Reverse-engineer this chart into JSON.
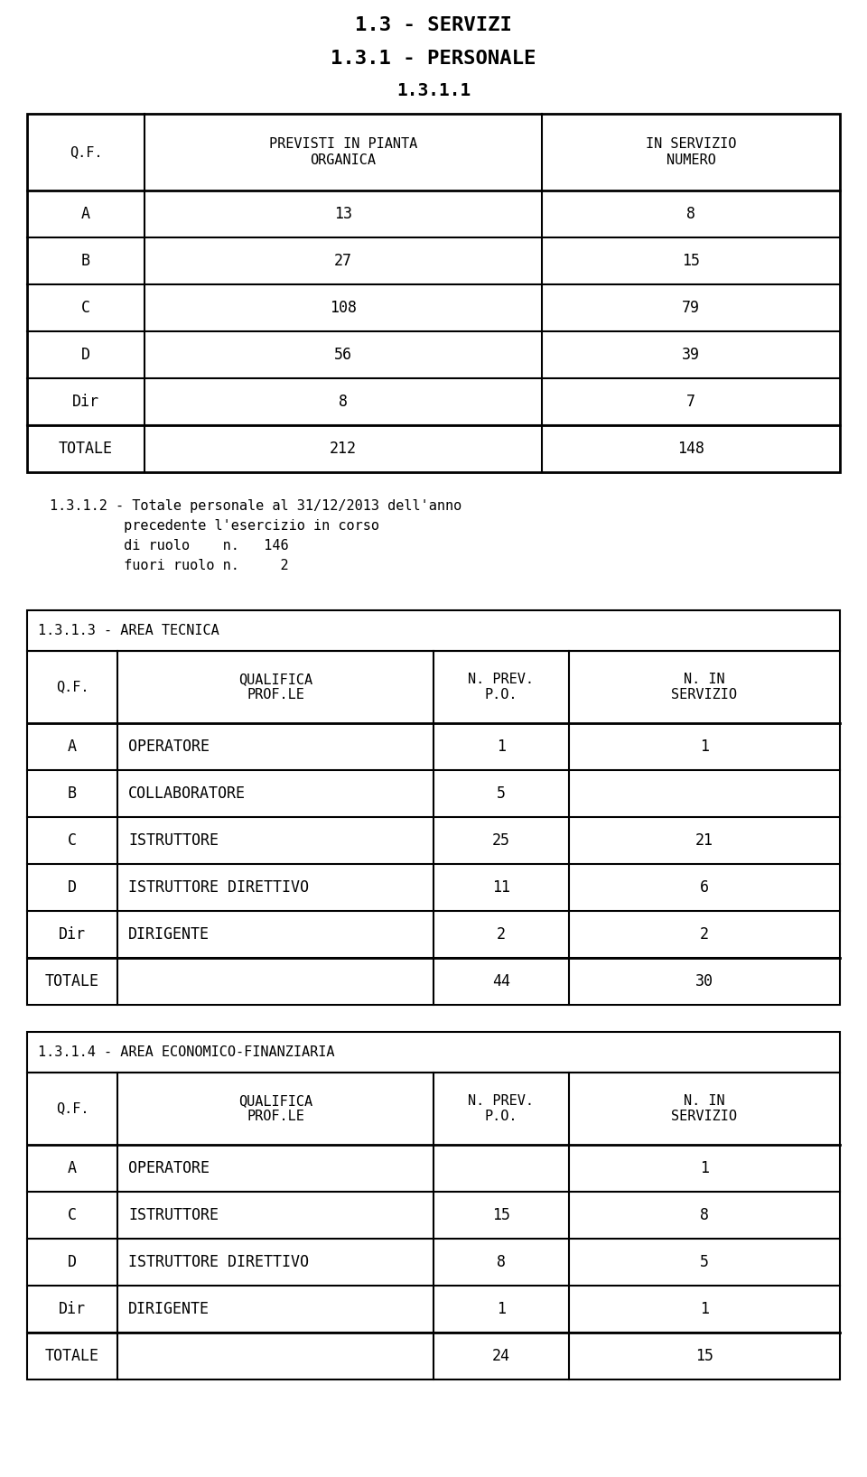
{
  "title1": "1.3 - SERVIZI",
  "title2": "1.3.1 - PERSONALE",
  "title3": "1.3.1.1",
  "table1_header": [
    "Q.F.",
    "PREVISTI IN PIANTA\nORGANICA",
    "IN SERVIZIO\nNUMERO"
  ],
  "table1_rows": [
    [
      "A",
      "13",
      "8"
    ],
    [
      "B",
      "27",
      "15"
    ],
    [
      "C",
      "108",
      "79"
    ],
    [
      "D",
      "56",
      "39"
    ],
    [
      "Dir",
      "8",
      "7"
    ]
  ],
  "table1_total": [
    "TOTALE",
    "212",
    "148"
  ],
  "text_line1": "1.3.1.2 - Totale personale al 31/12/2013 dell'anno",
  "text_line2": "         precedente l'esercizio in corso",
  "text_line3": "         di ruolo    n.   146",
  "text_line4": "         fuori ruolo n.     2",
  "section2_title": "1.3.1.3 - AREA TECNICA",
  "table2_header": [
    "Q.F.",
    "QUALIFICA\nPROF.LE",
    "N. PREV.\nP.O.",
    "N. IN\nSERVIZIO"
  ],
  "table2_rows": [
    [
      "A",
      "OPERATORE",
      "1",
      "1"
    ],
    [
      "B",
      "COLLABORATORE",
      "5",
      ""
    ],
    [
      "C",
      "ISTRUTTORE",
      "25",
      "21"
    ],
    [
      "D",
      "ISTRUTTORE DIRETTIVO",
      "11",
      "6"
    ],
    [
      "Dir",
      "DIRIGENTE",
      "2",
      "2"
    ]
  ],
  "table2_total": [
    "TOTALE",
    "",
    "44",
    "30"
  ],
  "section3_title": "1.3.1.4 - AREA ECONOMICO-FINANZIARIA",
  "table3_header": [
    "Q.F.",
    "QUALIFICA\nPROF.LE",
    "N. PREV.\nP.O.",
    "N. IN\nSERVIZIO"
  ],
  "table3_rows": [
    [
      "A",
      "OPERATORE",
      "",
      "1"
    ],
    [
      "C",
      "ISTRUTTORE",
      "15",
      "8"
    ],
    [
      "D",
      "ISTRUTTORE DIRETTIVO",
      "8",
      "5"
    ],
    [
      "Dir",
      "DIRIGENTE",
      "1",
      "1"
    ]
  ],
  "table3_total": [
    "TOTALE",
    "",
    "24",
    "15"
  ],
  "bg_color": "#ffffff",
  "text_color": "#000000"
}
